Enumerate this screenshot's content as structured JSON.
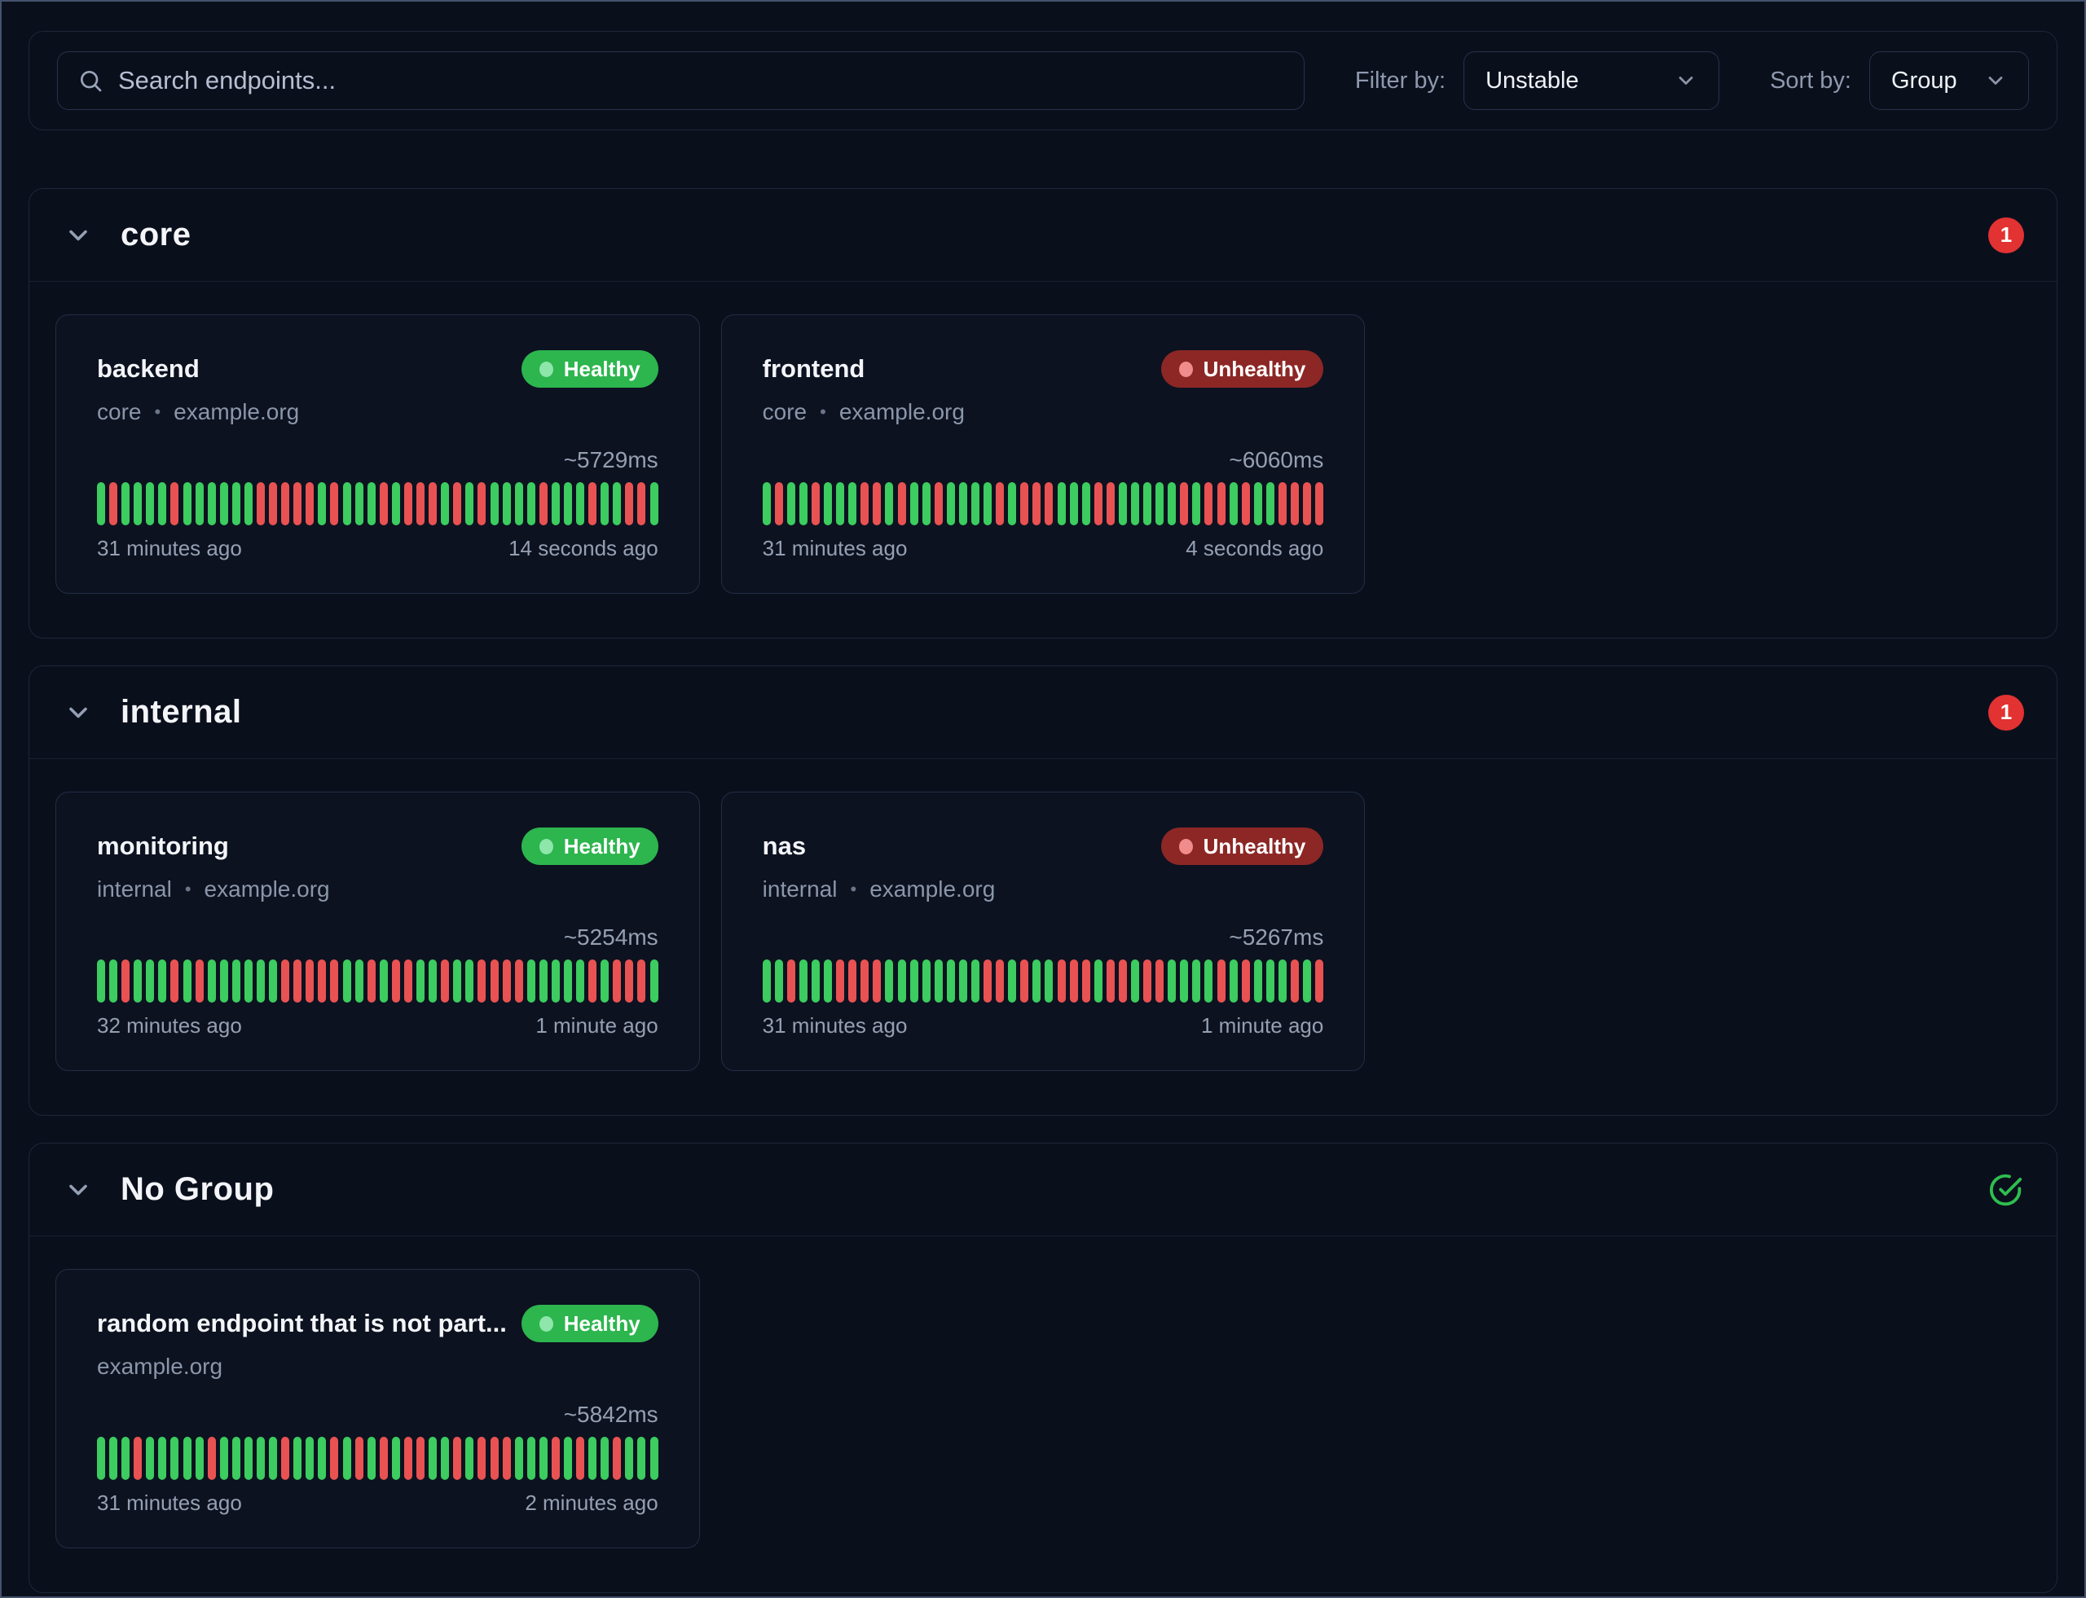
{
  "toolbar": {
    "search_placeholder": "Search endpoints...",
    "filter_label": "Filter by:",
    "filter_value": "Unstable",
    "sort_label": "Sort by:",
    "sort_value": "Group"
  },
  "colors": {
    "background": "#0a0f1c",
    "healthy_badge": "#2db54e",
    "unhealthy_badge": "#8c2726",
    "bar_success": "#3ccc5f",
    "bar_failure": "#e95252",
    "count_badge": "#e23232",
    "check_icon": "#2ebf4f"
  },
  "groups": [
    {
      "name": "core",
      "badge": {
        "type": "count",
        "value": "1"
      },
      "endpoints": [
        {
          "name": "backend",
          "status": "Healthy",
          "healthy": true,
          "meta": [
            "core",
            "example.org"
          ],
          "response_time": "~5729ms",
          "oldest": "31 minutes ago",
          "newest": "14 seconds ago",
          "history": "grggggrggggggrrrrrgrgggrgrrrgrgrggggrgggrggrrg"
        },
        {
          "name": "frontend",
          "status": "Unhealthy",
          "healthy": false,
          "meta": [
            "core",
            "example.org"
          ],
          "response_time": "~6060ms",
          "oldest": "31 minutes ago",
          "newest": "4 seconds ago",
          "history": "grggrgggrrgrggrggggrgrrrgggrrgggggrgrrgrggrrrr"
        }
      ]
    },
    {
      "name": "internal",
      "badge": {
        "type": "count",
        "value": "1"
      },
      "endpoints": [
        {
          "name": "monitoring",
          "status": "Healthy",
          "healthy": true,
          "meta": [
            "internal",
            "example.org"
          ],
          "response_time": "~5254ms",
          "oldest": "32 minutes ago",
          "newest": "1 minute ago",
          "history": "ggrgggrgrggggggrrrrrggrgrrggrggrrrrgggggrgrrrg"
        },
        {
          "name": "nas",
          "status": "Unhealthy",
          "healthy": false,
          "meta": [
            "internal",
            "example.org"
          ],
          "response_time": "~5267ms",
          "oldest": "31 minutes ago",
          "newest": "1 minute ago",
          "history": "ggrgggrrrrggggggggrrgrggrrrgrrgrrggggrgrgggrgr"
        }
      ]
    },
    {
      "name": "No Group",
      "badge": {
        "type": "check"
      },
      "endpoints": [
        {
          "name": "random endpoint that is not part...",
          "status": "Healthy",
          "healthy": true,
          "meta": [
            "example.org"
          ],
          "response_time": "~5842ms",
          "oldest": "31 minutes ago",
          "newest": "2 minutes ago",
          "history": "gggrgggggrgggggrgggrgrgrgrrggrgrrrgggrgrggrggg"
        }
      ]
    }
  ]
}
